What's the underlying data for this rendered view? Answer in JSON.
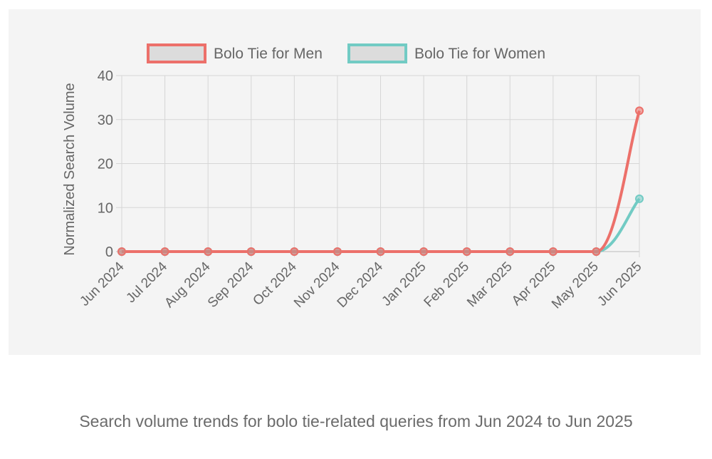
{
  "chart_data": {
    "type": "line",
    "x": [
      "Jun 2024",
      "Jul 2024",
      "Aug 2024",
      "Sep 2024",
      "Oct 2024",
      "Nov 2024",
      "Dec 2024",
      "Jan 2025",
      "Feb 2025",
      "Mar 2025",
      "Apr 2025",
      "May 2025",
      "Jun 2025"
    ],
    "series": [
      {
        "name": "Bolo Tie for Men",
        "color": "#ec706a",
        "values": [
          0,
          0,
          0,
          0,
          0,
          0,
          0,
          0,
          0,
          0,
          0,
          0,
          32
        ]
      },
      {
        "name": "Bolo Tie for Women",
        "color": "#72cbc4",
        "values": [
          0,
          0,
          0,
          0,
          0,
          0,
          0,
          0,
          0,
          0,
          0,
          0,
          12
        ]
      }
    ],
    "ylabel": "Normalized Search Volume",
    "ylim": [
      0,
      40
    ],
    "yticks": [
      0,
      10,
      20,
      30,
      40
    ],
    "grid": true,
    "legend": "top-center"
  },
  "caption": "Search volume trends for bolo tie-related queries from Jun 2024 to Jun 2025"
}
